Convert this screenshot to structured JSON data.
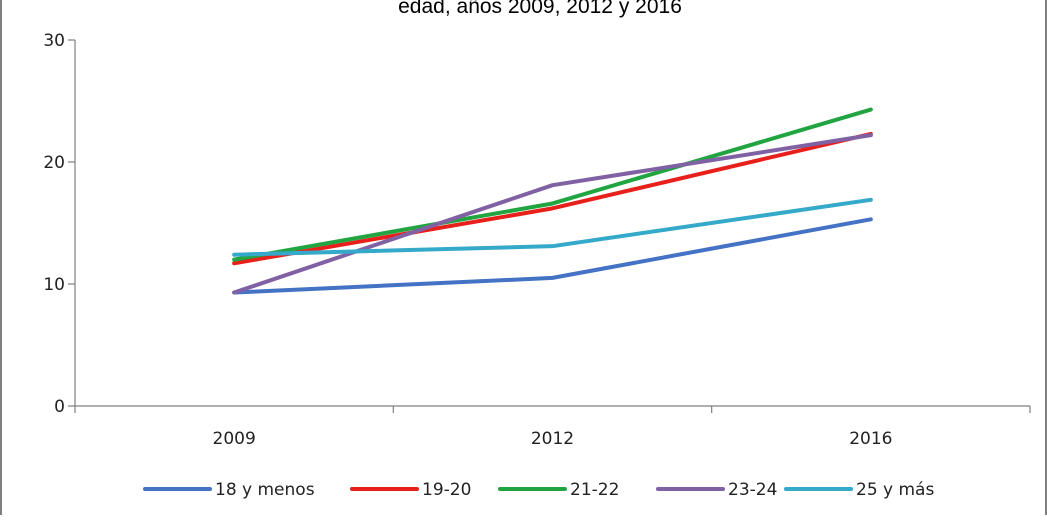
{
  "chart_data": {
    "type": "line",
    "title": "edad, años 2009, 2012 y 2016",
    "categories": [
      "2009",
      "2012",
      "2016"
    ],
    "yticks": [
      "0",
      "10",
      "20",
      "30"
    ],
    "ylim": [
      0,
      30
    ],
    "xlabel": "",
    "ylabel": "",
    "grid": false,
    "legend_position": "bottom",
    "series": [
      {
        "name": "18 y menos",
        "color": "#4472C4",
        "values": [
          9.3,
          10.5,
          15.3
        ]
      },
      {
        "name": "19-20",
        "color": "#E8201B",
        "values": [
          11.7,
          16.2,
          22.3
        ]
      },
      {
        "name": "21-22",
        "color": "#21A540",
        "values": [
          12.0,
          16.6,
          24.3
        ]
      },
      {
        "name": "23-24",
        "color": "#8061A4",
        "values": [
          9.3,
          18.1,
          22.2
        ]
      },
      {
        "name": "25 y más",
        "color": "#34A9C9",
        "values": [
          12.4,
          13.1,
          16.9
        ]
      }
    ]
  }
}
